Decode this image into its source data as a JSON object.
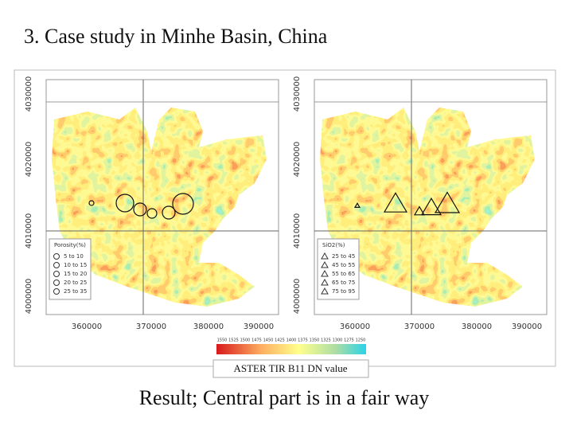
{
  "header": {
    "title": "3. Case study in Minhe Basin, China"
  },
  "maps": [
    {
      "yticks": [
        "4030000",
        "4020000",
        "4010000",
        "4000000"
      ],
      "xticks": [
        "360000",
        "370000",
        "380000",
        "390000"
      ],
      "legend": {
        "title": "Porosity(%)",
        "items": [
          "5 to 10",
          "10 to 15",
          "15 to 20",
          "20 to 25",
          "25 to 35"
        ]
      }
    },
    {
      "yticks": [
        "4030000",
        "4020000",
        "4010000",
        "4000000"
      ],
      "xticks": [
        "360000",
        "370000",
        "380000",
        "390000"
      ],
      "legend": {
        "title": "SiO2(%)",
        "items": [
          "25 to 45",
          "45 to 55",
          "55 to 65",
          "65 to 75",
          "75 to 95"
        ]
      }
    }
  ],
  "colorbar": {
    "labels": [
      "1550",
      "1525",
      "1500",
      "1475",
      "1450",
      "1425",
      "1400",
      "1375",
      "1350",
      "1325",
      "1300",
      "1275",
      "1250"
    ],
    "caption": "ASTER TIR B11 DN value"
  },
  "footer": {
    "text": "Result; Central part is in a fair way"
  }
}
